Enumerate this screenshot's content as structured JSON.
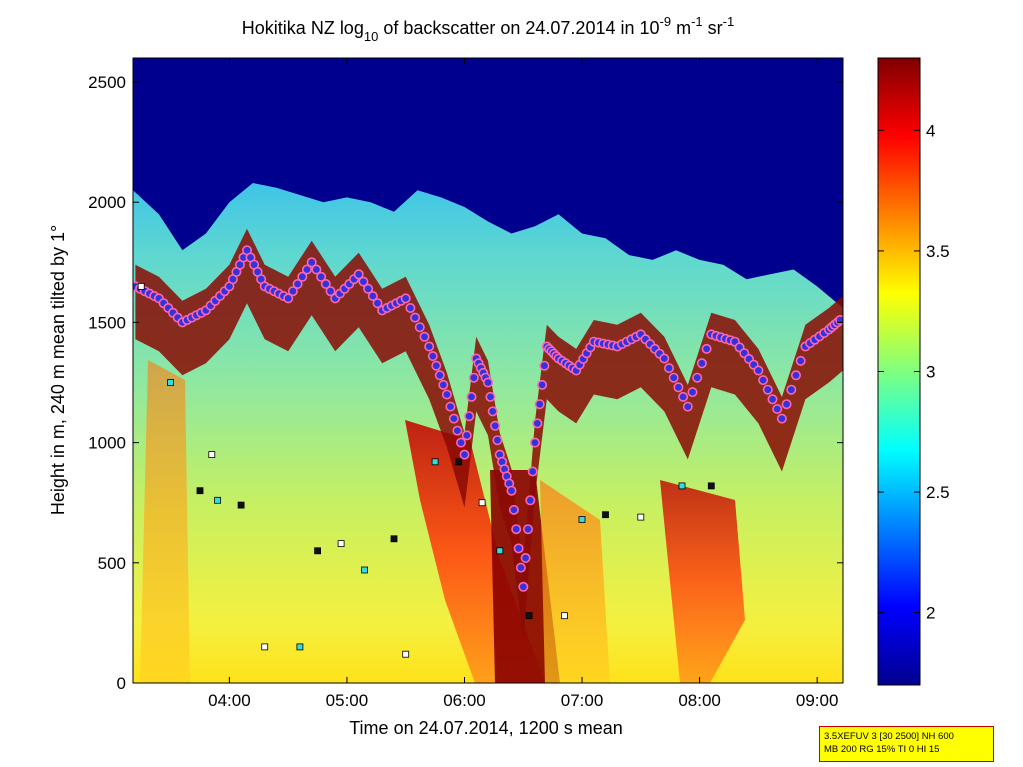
{
  "title": {
    "part1": "Hokitika NZ log",
    "sub": "10",
    "part2": " of backscatter on 24.07.2014 in 10",
    "sup1": "-9",
    "part3": " m",
    "sup2": "-1",
    "part4": " sr",
    "sup3": "-1"
  },
  "info_box": {
    "line1": "3.5XEFUV 3 [30 2500] NH 600",
    "line2": "MB 200 RG 15% TI 0 HI 15"
  },
  "colors": {
    "above_cloud": "#00008f",
    "marker_cloud": "#3333dd",
    "marker_cloud_edge": "#ff66aa",
    "marker_red": "#dd1111",
    "marker_white": "#ffffff",
    "marker_cyan": "#33dddd",
    "colormap": "jet"
  },
  "chart_data": {
    "type": "heatmap",
    "title": "Hokitika NZ log10 of backscatter on 24.07.2014 in 10^-9 m^-1 sr^-1",
    "xlabel": "Time on 24.07.2014, 1200 s mean",
    "ylabel": "Height in m, 240 m mean tilted by 1°",
    "x_unit": "hours (UTC clock time)",
    "xlim": [
      3.18,
      9.22
    ],
    "ylim": [
      0,
      2600
    ],
    "xticks": [
      4,
      5,
      6,
      7,
      8,
      9
    ],
    "xticklabels": [
      "04:00",
      "05:00",
      "06:00",
      "07:00",
      "08:00",
      "09:00"
    ],
    "yticks": [
      0,
      500,
      1000,
      1500,
      2000,
      2500
    ],
    "yticklabels": [
      "0",
      "500",
      "1000",
      "1500",
      "2000",
      "2500"
    ],
    "colorbar": {
      "colormap": "jet",
      "range": [
        1.7,
        4.3
      ],
      "ticks": [
        2,
        2.5,
        3,
        3.5,
        4
      ],
      "ticklabels": [
        "2",
        "2.5",
        "3",
        "3.5",
        "4"
      ]
    },
    "signal_top_m": [
      [
        3.18,
        2050
      ],
      [
        3.4,
        1950
      ],
      [
        3.6,
        1800
      ],
      [
        3.8,
        1870
      ],
      [
        4.0,
        2000
      ],
      [
        4.2,
        2080
      ],
      [
        4.4,
        2060
      ],
      [
        4.6,
        2030
      ],
      [
        4.8,
        2000
      ],
      [
        5.0,
        2020
      ],
      [
        5.2,
        2000
      ],
      [
        5.4,
        1960
      ],
      [
        5.6,
        2050
      ],
      [
        5.8,
        2020
      ],
      [
        6.0,
        1980
      ],
      [
        6.2,
        1920
      ],
      [
        6.4,
        1870
      ],
      [
        6.6,
        1900
      ],
      [
        6.8,
        1950
      ],
      [
        7.0,
        1870
      ],
      [
        7.2,
        1850
      ],
      [
        7.4,
        1780
      ],
      [
        7.6,
        1760
      ],
      [
        7.8,
        1800
      ],
      [
        8.0,
        1760
      ],
      [
        8.2,
        1740
      ],
      [
        8.4,
        1680
      ],
      [
        8.6,
        1700
      ],
      [
        8.8,
        1720
      ],
      [
        9.0,
        1650
      ],
      [
        9.22,
        1560
      ]
    ],
    "cloud_base_m": [
      [
        3.2,
        1650
      ],
      [
        3.4,
        1600
      ],
      [
        3.6,
        1500
      ],
      [
        3.8,
        1550
      ],
      [
        4.0,
        1650
      ],
      [
        4.15,
        1800
      ],
      [
        4.3,
        1650
      ],
      [
        4.5,
        1600
      ],
      [
        4.7,
        1750
      ],
      [
        4.9,
        1600
      ],
      [
        5.1,
        1700
      ],
      [
        5.3,
        1550
      ],
      [
        5.5,
        1600
      ],
      [
        5.7,
        1400
      ],
      [
        5.85,
        1200
      ],
      [
        6.0,
        950
      ],
      [
        6.1,
        1350
      ],
      [
        6.2,
        1250
      ],
      [
        6.3,
        950
      ],
      [
        6.4,
        800
      ],
      [
        6.5,
        400
      ],
      [
        6.6,
        1000
      ],
      [
        6.7,
        1400
      ],
      [
        6.8,
        1350
      ],
      [
        6.95,
        1300
      ],
      [
        7.1,
        1420
      ],
      [
        7.3,
        1400
      ],
      [
        7.5,
        1450
      ],
      [
        7.7,
        1350
      ],
      [
        7.9,
        1150
      ],
      [
        8.1,
        1450
      ],
      [
        8.3,
        1420
      ],
      [
        8.5,
        1300
      ],
      [
        8.7,
        1100
      ],
      [
        8.9,
        1400
      ],
      [
        9.1,
        1470
      ],
      [
        9.22,
        1520
      ]
    ],
    "layer_markers_m": [
      [
        3.25,
        1650
      ],
      [
        3.5,
        1250
      ],
      [
        3.75,
        800
      ],
      [
        3.85,
        950
      ],
      [
        3.9,
        760
      ],
      [
        4.1,
        740
      ],
      [
        4.3,
        150
      ],
      [
        4.6,
        150
      ],
      [
        4.75,
        550
      ],
      [
        4.95,
        580
      ],
      [
        5.15,
        470
      ],
      [
        5.4,
        600
      ],
      [
        5.5,
        120
      ],
      [
        5.75,
        920
      ],
      [
        5.95,
        920
      ],
      [
        6.15,
        750
      ],
      [
        6.3,
        550
      ],
      [
        6.55,
        280
      ],
      [
        6.85,
        280
      ],
      [
        7.0,
        680
      ],
      [
        7.2,
        700
      ],
      [
        7.5,
        690
      ],
      [
        7.85,
        820
      ],
      [
        8.1,
        820
      ]
    ]
  }
}
